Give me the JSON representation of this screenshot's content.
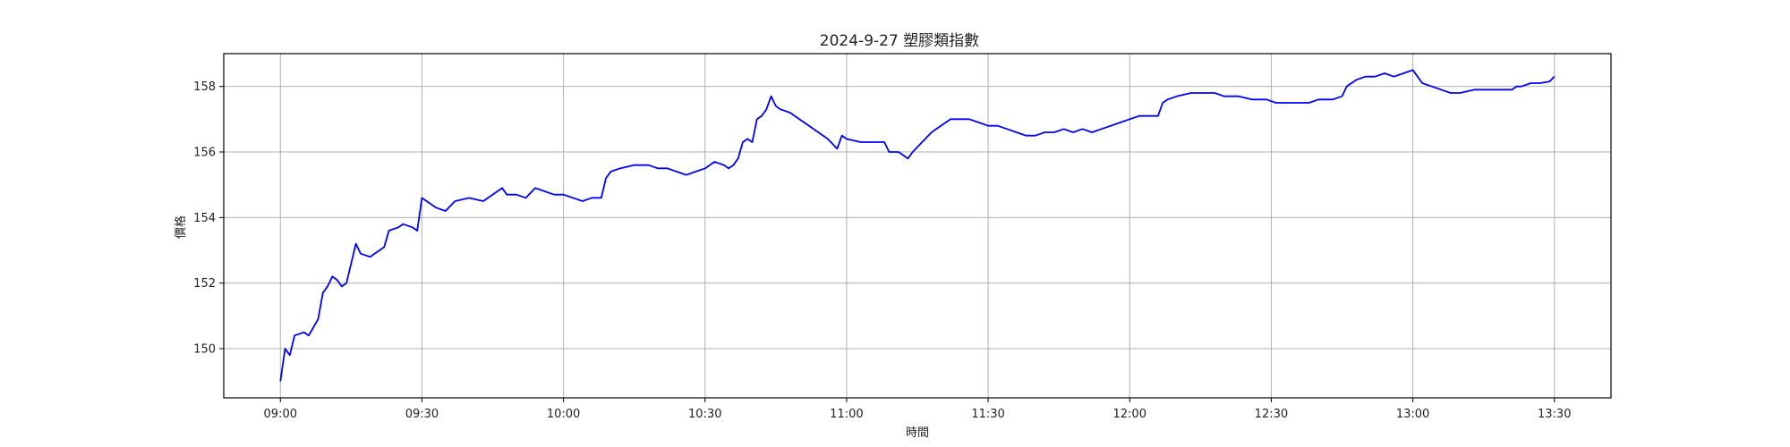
{
  "chart_data": {
    "type": "line",
    "title": "2024-9-27 塑膠類指數",
    "xlabel": "時間",
    "ylabel": "價格",
    "xlim": [
      "08:48",
      "13:42"
    ],
    "ylim": [
      148.5,
      159.0
    ],
    "grid": true,
    "x_ticks": [
      "09:00",
      "09:30",
      "10:00",
      "10:30",
      "11:00",
      "11:30",
      "12:00",
      "12:30",
      "13:00",
      "13:30"
    ],
    "y_ticks": [
      150,
      152,
      154,
      156,
      158
    ],
    "series": [
      {
        "name": "",
        "color": "#0000ff",
        "points": [
          [
            "09:00",
            149.0
          ],
          [
            "09:01",
            150.0
          ],
          [
            "09:02",
            149.8
          ],
          [
            "09:03",
            150.4
          ],
          [
            "09:05",
            150.5
          ],
          [
            "09:06",
            150.4
          ],
          [
            "09:08",
            150.9
          ],
          [
            "09:09",
            151.7
          ],
          [
            "09:10",
            151.9
          ],
          [
            "09:11",
            152.2
          ],
          [
            "09:12",
            152.1
          ],
          [
            "09:13",
            151.9
          ],
          [
            "09:14",
            152.0
          ],
          [
            "09:15",
            152.6
          ],
          [
            "09:16",
            153.2
          ],
          [
            "09:17",
            152.9
          ],
          [
            "09:19",
            152.8
          ],
          [
            "09:20",
            152.9
          ],
          [
            "09:22",
            153.1
          ],
          [
            "09:23",
            153.6
          ],
          [
            "09:25",
            153.7
          ],
          [
            "09:26",
            153.8
          ],
          [
            "09:28",
            153.7
          ],
          [
            "09:29",
            153.6
          ],
          [
            "09:30",
            154.6
          ],
          [
            "09:31",
            154.5
          ],
          [
            "09:33",
            154.3
          ],
          [
            "09:35",
            154.2
          ],
          [
            "09:37",
            154.5
          ],
          [
            "09:40",
            154.6
          ],
          [
            "09:43",
            154.5
          ],
          [
            "09:45",
            154.7
          ],
          [
            "09:47",
            154.9
          ],
          [
            "09:48",
            154.7
          ],
          [
            "09:50",
            154.7
          ],
          [
            "09:52",
            154.6
          ],
          [
            "09:54",
            154.9
          ],
          [
            "09:56",
            154.8
          ],
          [
            "09:58",
            154.7
          ],
          [
            "10:00",
            154.7
          ],
          [
            "10:02",
            154.6
          ],
          [
            "10:04",
            154.5
          ],
          [
            "10:06",
            154.6
          ],
          [
            "10:08",
            154.6
          ],
          [
            "10:09",
            155.2
          ],
          [
            "10:10",
            155.4
          ],
          [
            "10:12",
            155.5
          ],
          [
            "10:15",
            155.6
          ],
          [
            "10:18",
            155.6
          ],
          [
            "10:20",
            155.5
          ],
          [
            "10:22",
            155.5
          ],
          [
            "10:24",
            155.4
          ],
          [
            "10:26",
            155.3
          ],
          [
            "10:28",
            155.4
          ],
          [
            "10:30",
            155.5
          ],
          [
            "10:32",
            155.7
          ],
          [
            "10:34",
            155.6
          ],
          [
            "10:35",
            155.5
          ],
          [
            "10:36",
            155.6
          ],
          [
            "10:37",
            155.8
          ],
          [
            "10:38",
            156.3
          ],
          [
            "10:39",
            156.4
          ],
          [
            "10:40",
            156.3
          ],
          [
            "10:41",
            157.0
          ],
          [
            "10:42",
            157.1
          ],
          [
            "10:43",
            157.3
          ],
          [
            "10:44",
            157.7
          ],
          [
            "10:45",
            157.4
          ],
          [
            "10:46",
            157.3
          ],
          [
            "10:48",
            157.2
          ],
          [
            "10:50",
            157.0
          ],
          [
            "10:52",
            156.8
          ],
          [
            "10:54",
            156.6
          ],
          [
            "10:56",
            156.4
          ],
          [
            "10:58",
            156.1
          ],
          [
            "10:59",
            156.5
          ],
          [
            "11:00",
            156.4
          ],
          [
            "11:03",
            156.3
          ],
          [
            "11:06",
            156.3
          ],
          [
            "11:08",
            156.3
          ],
          [
            "11:09",
            156.0
          ],
          [
            "11:11",
            156.0
          ],
          [
            "11:13",
            155.8
          ],
          [
            "11:14",
            156.0
          ],
          [
            "11:16",
            156.3
          ],
          [
            "11:18",
            156.6
          ],
          [
            "11:20",
            156.8
          ],
          [
            "11:22",
            157.0
          ],
          [
            "11:24",
            157.0
          ],
          [
            "11:26",
            157.0
          ],
          [
            "11:28",
            156.9
          ],
          [
            "11:30",
            156.8
          ],
          [
            "11:32",
            156.8
          ],
          [
            "11:34",
            156.7
          ],
          [
            "11:36",
            156.6
          ],
          [
            "11:38",
            156.5
          ],
          [
            "11:40",
            156.5
          ],
          [
            "11:42",
            156.6
          ],
          [
            "11:44",
            156.6
          ],
          [
            "11:46",
            156.7
          ],
          [
            "11:48",
            156.6
          ],
          [
            "11:50",
            156.7
          ],
          [
            "11:52",
            156.6
          ],
          [
            "11:54",
            156.7
          ],
          [
            "11:56",
            156.8
          ],
          [
            "11:58",
            156.9
          ],
          [
            "12:00",
            157.0
          ],
          [
            "12:02",
            157.1
          ],
          [
            "12:04",
            157.1
          ],
          [
            "12:06",
            157.1
          ],
          [
            "12:07",
            157.5
          ],
          [
            "12:08",
            157.6
          ],
          [
            "12:10",
            157.7
          ],
          [
            "12:13",
            157.8
          ],
          [
            "12:16",
            157.8
          ],
          [
            "12:18",
            157.8
          ],
          [
            "12:20",
            157.7
          ],
          [
            "12:23",
            157.7
          ],
          [
            "12:26",
            157.6
          ],
          [
            "12:29",
            157.6
          ],
          [
            "12:31",
            157.5
          ],
          [
            "12:34",
            157.5
          ],
          [
            "12:36",
            157.5
          ],
          [
            "12:38",
            157.5
          ],
          [
            "12:40",
            157.6
          ],
          [
            "12:43",
            157.6
          ],
          [
            "12:45",
            157.7
          ],
          [
            "12:46",
            158.0
          ],
          [
            "12:48",
            158.2
          ],
          [
            "12:50",
            158.3
          ],
          [
            "12:52",
            158.3
          ],
          [
            "12:54",
            158.4
          ],
          [
            "12:56",
            158.3
          ],
          [
            "12:58",
            158.4
          ],
          [
            "13:00",
            158.5
          ],
          [
            "13:01",
            158.3
          ],
          [
            "13:02",
            158.1
          ],
          [
            "13:04",
            158.0
          ],
          [
            "13:06",
            157.9
          ],
          [
            "13:08",
            157.8
          ],
          [
            "13:10",
            157.8
          ],
          [
            "13:13",
            157.9
          ],
          [
            "13:16",
            157.9
          ],
          [
            "13:19",
            157.9
          ],
          [
            "13:21",
            157.9
          ],
          [
            "13:22",
            158.0
          ],
          [
            "13:23",
            158.0
          ],
          [
            "13:25",
            158.1
          ],
          [
            "13:27",
            158.1
          ],
          [
            "13:29",
            158.15
          ],
          [
            "13:30",
            158.3
          ]
        ]
      }
    ]
  }
}
